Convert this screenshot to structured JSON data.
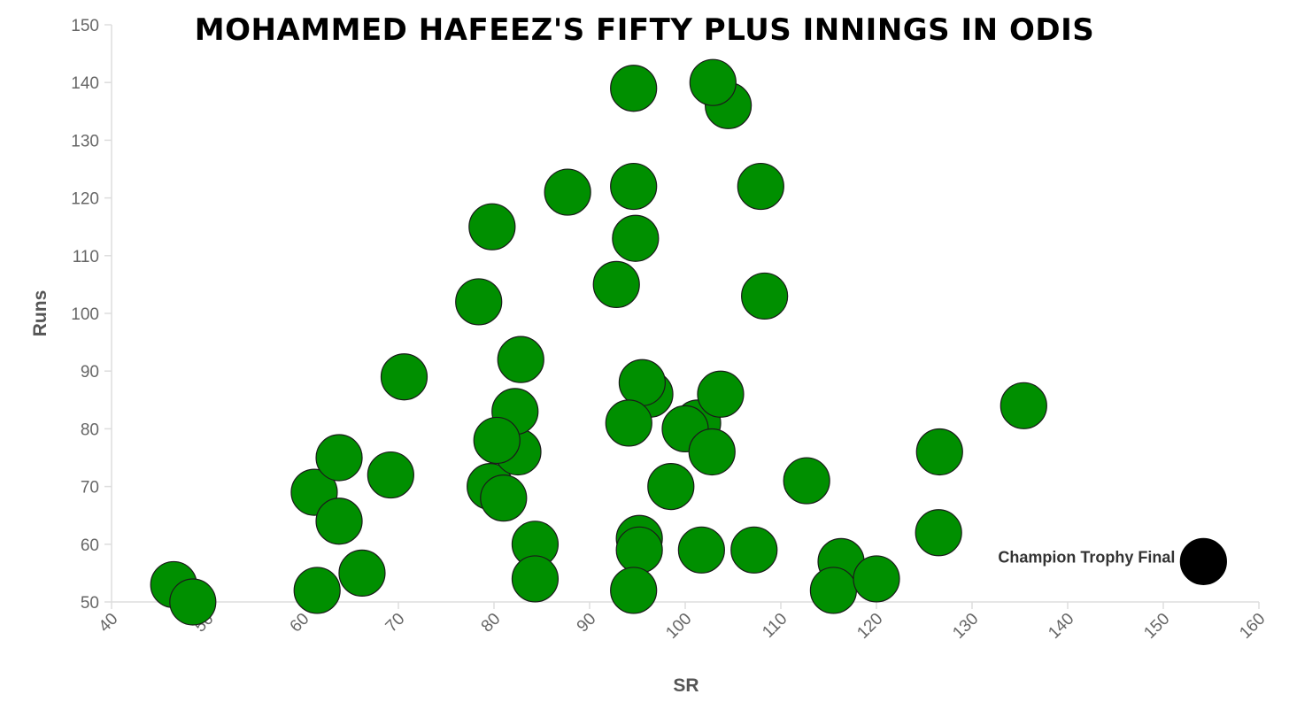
{
  "chart_data": {
    "type": "scatter",
    "title": "MOHAMMED HAFEEZ'S FIFTY PLUS INNINGS IN ODIS",
    "xlabel": "SR",
    "ylabel": "Runs",
    "xlim": [
      40,
      160
    ],
    "ylim": [
      50,
      150
    ],
    "x_ticks": [
      "40",
      "50",
      "60",
      "70",
      "80",
      "90",
      "100",
      "110",
      "120",
      "130",
      "140",
      "150",
      "160"
    ],
    "y_ticks": [
      "50",
      "60",
      "70",
      "80",
      "90",
      "100",
      "110",
      "120",
      "130",
      "140",
      "150"
    ],
    "grid": false,
    "colors": {
      "point": "#008f00",
      "highlight": "#000000",
      "outline": "#1a1a1a"
    },
    "points": [
      {
        "x": 46.5,
        "y": 53
      },
      {
        "x": 48.5,
        "y": 50
      },
      {
        "x": 61.5,
        "y": 52
      },
      {
        "x": 61.2,
        "y": 69
      },
      {
        "x": 63.8,
        "y": 64
      },
      {
        "x": 63.8,
        "y": 75
      },
      {
        "x": 66.2,
        "y": 55
      },
      {
        "x": 69.2,
        "y": 72
      },
      {
        "x": 70.6,
        "y": 89
      },
      {
        "x": 78.4,
        "y": 102
      },
      {
        "x": 79.8,
        "y": 115
      },
      {
        "x": 79.6,
        "y": 70
      },
      {
        "x": 81.0,
        "y": 68
      },
      {
        "x": 82.5,
        "y": 76
      },
      {
        "x": 82.2,
        "y": 83
      },
      {
        "x": 80.3,
        "y": 78
      },
      {
        "x": 82.8,
        "y": 92
      },
      {
        "x": 84.3,
        "y": 60
      },
      {
        "x": 84.3,
        "y": 54
      },
      {
        "x": 87.7,
        "y": 121
      },
      {
        "x": 92.8,
        "y": 105
      },
      {
        "x": 94.6,
        "y": 139
      },
      {
        "x": 94.6,
        "y": 122
      },
      {
        "x": 94.8,
        "y": 113
      },
      {
        "x": 96.3,
        "y": 86
      },
      {
        "x": 95.5,
        "y": 88
      },
      {
        "x": 94.1,
        "y": 81
      },
      {
        "x": 95.2,
        "y": 61
      },
      {
        "x": 95.2,
        "y": 59
      },
      {
        "x": 94.6,
        "y": 52
      },
      {
        "x": 98.5,
        "y": 70
      },
      {
        "x": 101.3,
        "y": 81
      },
      {
        "x": 100.0,
        "y": 80
      },
      {
        "x": 102.8,
        "y": 76
      },
      {
        "x": 103.7,
        "y": 86
      },
      {
        "x": 101.7,
        "y": 59
      },
      {
        "x": 104.5,
        "y": 136
      },
      {
        "x": 102.9,
        "y": 140
      },
      {
        "x": 107.9,
        "y": 122
      },
      {
        "x": 108.3,
        "y": 103
      },
      {
        "x": 107.2,
        "y": 59
      },
      {
        "x": 112.7,
        "y": 71
      },
      {
        "x": 116.3,
        "y": 57
      },
      {
        "x": 115.5,
        "y": 52
      },
      {
        "x": 120.0,
        "y": 54
      },
      {
        "x": 126.6,
        "y": 76
      },
      {
        "x": 126.5,
        "y": 62
      },
      {
        "x": 135.4,
        "y": 84
      }
    ],
    "highlight": {
      "x": 154.2,
      "y": 57,
      "label": "Champion Trophy Final"
    }
  }
}
